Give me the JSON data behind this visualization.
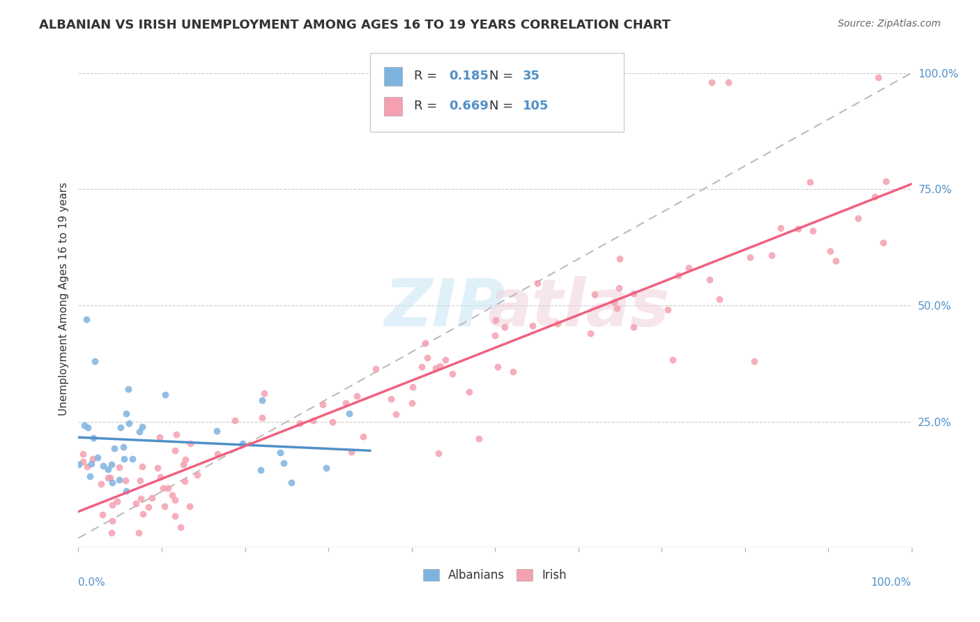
{
  "title": "ALBANIAN VS IRISH UNEMPLOYMENT AMONG AGES 16 TO 19 YEARS CORRELATION CHART",
  "source": "Source: ZipAtlas.com",
  "ylabel": "Unemployment Among Ages 16 to 19 years",
  "albanian_color": "#7EB3E0",
  "irish_color": "#F4A0B0",
  "albanian_line_color": "#5090C8",
  "irish_line_color": "#F06080",
  "dashed_line_color": "#BBBBBB",
  "background_color": "#FFFFFF",
  "albanian_R": 0.185,
  "albanian_N": 35,
  "irish_R": 0.669,
  "irish_N": 105,
  "blue_text_color": "#5090C8",
  "title_color": "#333333",
  "source_color": "#666666"
}
